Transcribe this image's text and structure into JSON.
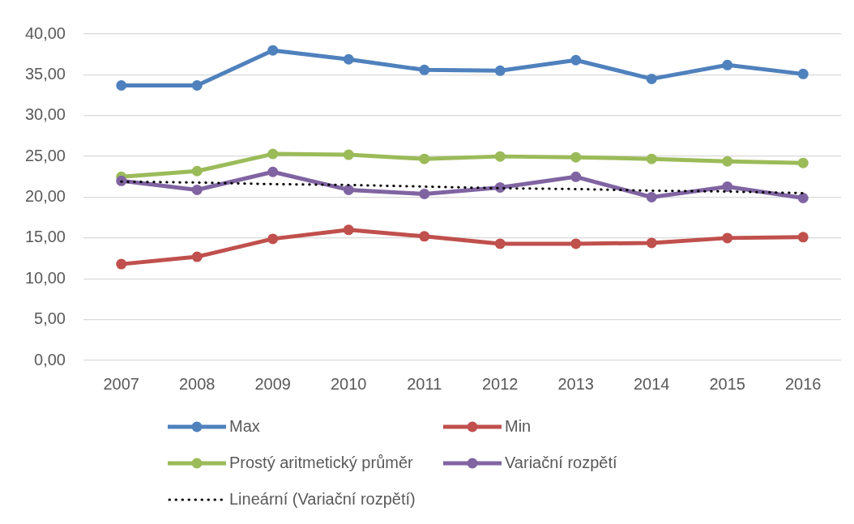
{
  "chart_data": {
    "type": "line",
    "categories": [
      "2007",
      "2008",
      "2009",
      "2010",
      "2011",
      "2012",
      "2013",
      "2014",
      "2015",
      "2016"
    ],
    "series": [
      {
        "name": "Max",
        "color": "#4f81bd",
        "values": [
          33.7,
          33.7,
          38.0,
          36.9,
          35.6,
          35.5,
          36.8,
          34.5,
          36.2,
          35.1
        ]
      },
      {
        "name": "Min",
        "color": "#c0504d",
        "values": [
          11.8,
          12.7,
          14.9,
          16.0,
          15.2,
          14.3,
          14.3,
          14.4,
          15.0,
          15.1
        ]
      },
      {
        "name": "Prostý aritmetický průměr",
        "color": "#9bbb59",
        "values": [
          22.5,
          23.2,
          25.3,
          25.2,
          24.7,
          25.0,
          24.9,
          24.7,
          24.4,
          24.2
        ]
      },
      {
        "name": "Variační rozpětí",
        "color": "#8064a2",
        "values": [
          22.0,
          20.9,
          23.1,
          20.9,
          20.4,
          21.2,
          22.5,
          20.0,
          21.3,
          19.9
        ]
      },
      {
        "name": "Lineární (Variační rozpětí)",
        "color": "#000000",
        "type": "line",
        "marker": "none",
        "line_style": "dotted",
        "values": [
          21.9,
          21.8,
          21.6,
          21.5,
          21.3,
          21.1,
          21.0,
          20.8,
          20.7,
          20.5
        ]
      }
    ],
    "ylim": [
      0,
      40
    ],
    "yticks": [
      {
        "value": 0,
        "label": "0,00"
      },
      {
        "value": 5,
        "label": "5,00"
      },
      {
        "value": 10,
        "label": "10,00"
      },
      {
        "value": 15,
        "label": "15,00"
      },
      {
        "value": 20,
        "label": "20,00"
      },
      {
        "value": 25,
        "label": "25,00"
      },
      {
        "value": 30,
        "label": "30,00"
      },
      {
        "value": 35,
        "label": "35,00"
      },
      {
        "value": 40,
        "label": "40,00"
      }
    ],
    "grid": "y",
    "legend": "bottom",
    "marker": "circle",
    "line_style": "solid"
  }
}
